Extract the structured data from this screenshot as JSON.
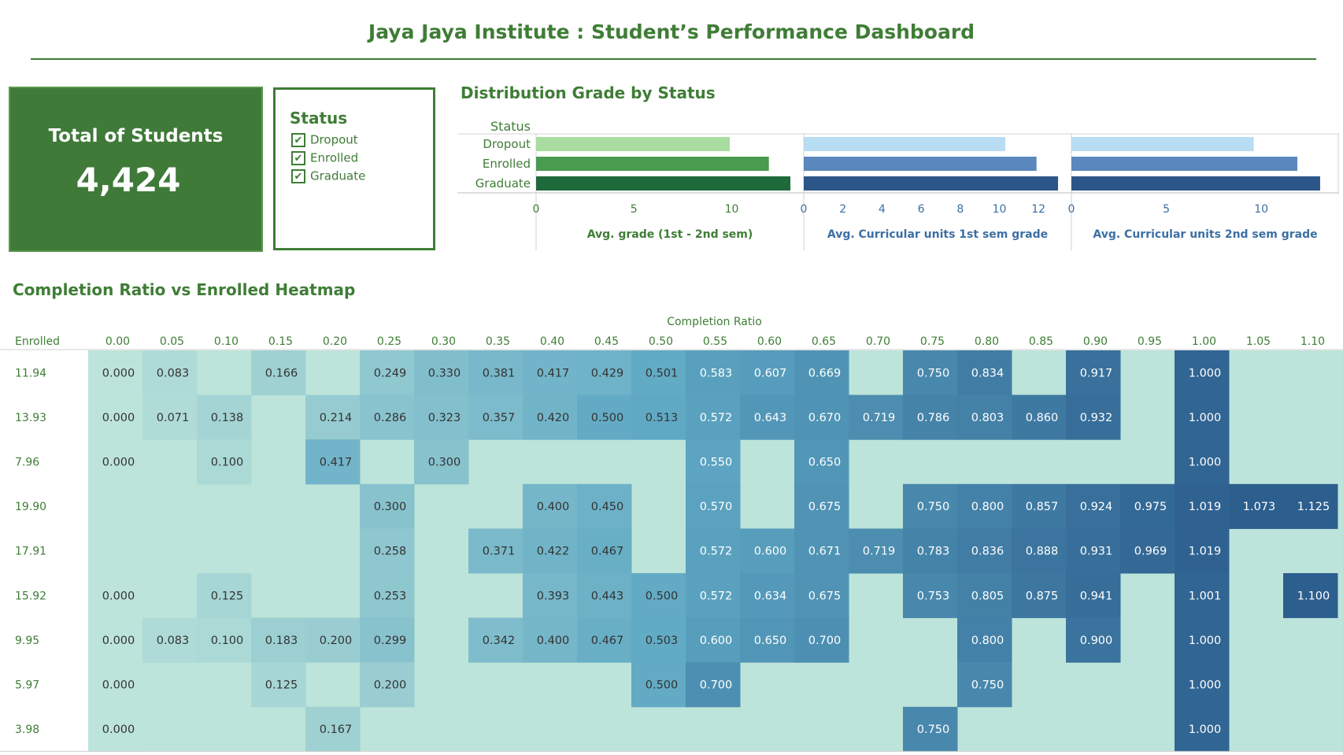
{
  "header": {
    "title": "Jaya Jaya Institute : Student’s Performance Dashboard"
  },
  "kpi": {
    "label": "Total of Students",
    "value": "4,424"
  },
  "legend": {
    "title": "Status",
    "items": [
      {
        "label": "Dropout",
        "checked": "✔"
      },
      {
        "label": "Enrolled",
        "checked": "✔"
      },
      {
        "label": "Graduate",
        "checked": "✔"
      }
    ]
  },
  "colors": {
    "green_light": "#a8dca0",
    "green_mid": "#4a9a50",
    "green_dark": "#1f6a3a",
    "blue_light": "#b8dcf2",
    "blue_mid": "#5b88bc",
    "blue_dark": "#2c5688",
    "heat_low": "#bde4da",
    "heat_high": "#2c5e8e"
  },
  "chart_data": [
    {
      "type": "bar",
      "title": "Distribution Grade by Status",
      "category_header": "Status",
      "categories": [
        "Dropout",
        "Enrolled",
        "Graduate"
      ],
      "panels": [
        {
          "xlabel": "Avg. grade (1st - 2nd sem)",
          "values": [
            9.9,
            11.9,
            13.0
          ],
          "xlim": [
            0,
            13.2
          ],
          "ticks": [
            0,
            5,
            10
          ],
          "color": "green"
        },
        {
          "xlabel": "Avg. Curricular units 1st sem grade",
          "values": [
            10.3,
            11.9,
            13.0
          ],
          "xlim": [
            0,
            13.2
          ],
          "ticks": [
            0,
            2,
            4,
            6,
            8,
            10,
            12
          ],
          "color": "blue"
        },
        {
          "xlabel": "Avg. Curricular units 2nd sem grade",
          "values": [
            9.6,
            11.9,
            13.1
          ],
          "xlim": [
            0,
            13.6
          ],
          "ticks": [
            0,
            5,
            10
          ],
          "color": "blue"
        }
      ]
    },
    {
      "type": "heatmap",
      "title": "Completion Ratio vs Enrolled Heatmap",
      "xlabel": "Completion Ratio",
      "ylabel": "Enrolled",
      "x": [
        "0.00",
        "0.05",
        "0.10",
        "0.15",
        "0.20",
        "0.25",
        "0.30",
        "0.35",
        "0.40",
        "0.45",
        "0.50",
        "0.55",
        "0.60",
        "0.65",
        "0.70",
        "0.75",
        "0.80",
        "0.85",
        "0.90",
        "0.95",
        "1.00",
        "1.05",
        "1.10"
      ],
      "y": [
        "11.94",
        "13.93",
        "7.96",
        "19.90",
        "17.91",
        "15.92",
        "9.95",
        "5.97",
        "3.98"
      ],
      "values": [
        [
          "0.000",
          "0.083",
          null,
          "0.166",
          null,
          "0.249",
          "0.330",
          "0.381",
          "0.417",
          "0.429",
          "0.501",
          "0.583",
          "0.607",
          "0.669",
          null,
          "0.750",
          "0.834",
          null,
          "0.917",
          null,
          "1.000",
          null,
          null
        ],
        [
          "0.000",
          "0.071",
          "0.138",
          null,
          "0.214",
          "0.286",
          "0.323",
          "0.357",
          "0.420",
          "0.500",
          "0.513",
          "0.572",
          "0.643",
          "0.670",
          "0.719",
          "0.786",
          "0.803",
          "0.860",
          "0.932",
          null,
          "1.000",
          null,
          null
        ],
        [
          "0.000",
          null,
          "0.100",
          null,
          "0.417",
          null,
          "0.300",
          null,
          null,
          null,
          null,
          "0.550",
          null,
          "0.650",
          null,
          null,
          null,
          null,
          null,
          null,
          "1.000",
          null,
          null
        ],
        [
          null,
          null,
          null,
          null,
          null,
          "0.300",
          null,
          null,
          "0.400",
          "0.450",
          null,
          "0.570",
          null,
          "0.675",
          null,
          "0.750",
          "0.800",
          "0.857",
          "0.924",
          "0.975",
          "1.019",
          "1.073",
          "1.125"
        ],
        [
          null,
          null,
          null,
          null,
          null,
          "0.258",
          null,
          "0.371",
          "0.422",
          "0.467",
          null,
          "0.572",
          "0.600",
          "0.671",
          "0.719",
          "0.783",
          "0.836",
          "0.888",
          "0.931",
          "0.969",
          "1.019",
          null,
          null
        ],
        [
          "0.000",
          null,
          "0.125",
          null,
          null,
          "0.253",
          null,
          null,
          "0.393",
          "0.443",
          "0.500",
          "0.572",
          "0.634",
          "0.675",
          null,
          "0.753",
          "0.805",
          "0.875",
          "0.941",
          null,
          "1.001",
          null,
          "1.100"
        ],
        [
          "0.000",
          "0.083",
          "0.100",
          "0.183",
          "0.200",
          "0.299",
          null,
          "0.342",
          "0.400",
          "0.467",
          "0.503",
          "0.600",
          "0.650",
          "0.700",
          null,
          null,
          "0.800",
          null,
          "0.900",
          null,
          "1.000",
          null,
          null
        ],
        [
          "0.000",
          null,
          null,
          "0.125",
          null,
          "0.200",
          null,
          null,
          null,
          null,
          "0.500",
          "0.700",
          null,
          null,
          null,
          null,
          "0.750",
          null,
          null,
          null,
          "1.000",
          null,
          null
        ],
        [
          "0.000",
          null,
          null,
          null,
          "0.167",
          null,
          null,
          null,
          null,
          null,
          null,
          null,
          null,
          null,
          null,
          "0.750",
          null,
          null,
          null,
          null,
          "1.000",
          null,
          null
        ]
      ]
    }
  ]
}
